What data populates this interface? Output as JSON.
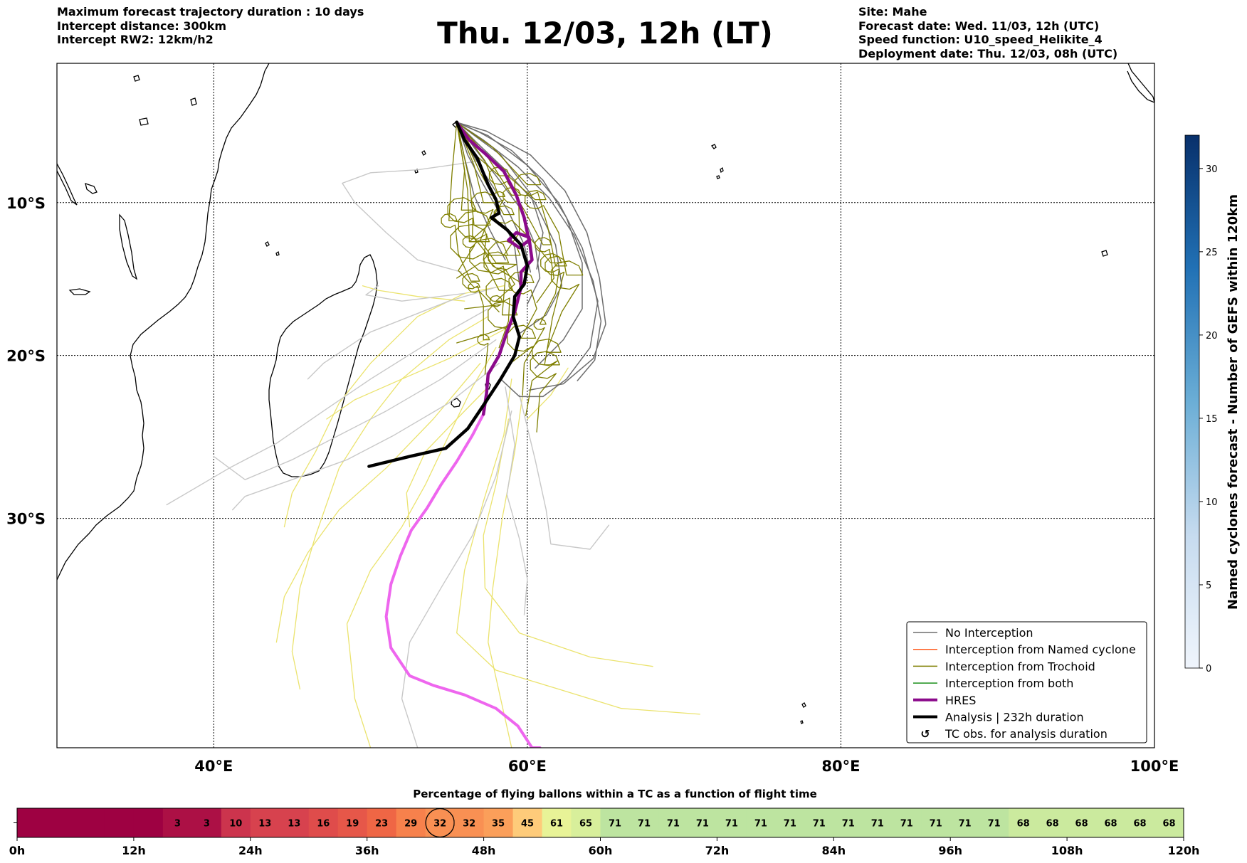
{
  "header": {
    "left_lines": [
      "Maximum forecast trajectory duration : 10 days",
      "Intercept distance: 300km",
      "Intercept RW2: 12km/h2"
    ],
    "title": "Thu. 12/03, 12h (LT)",
    "right_lines": [
      "Site: Mahe",
      "Forecast date: Wed. 11/03, 12h (UTC)",
      "Speed function: U10_speed_Helikite_4",
      "Deployment date: Thu. 12/03, 08h (UTC)"
    ]
  },
  "colors": {
    "no_interception": "#6e6e6e",
    "no_interception_faded": "#c8c8c8",
    "named_cyclone": "#ff5a1e",
    "trochoid": "#7f7f00",
    "trochoid_faded": "#ebe36e",
    "both": "#1a8f1a",
    "hres": "#8b0a8b",
    "hres_faded": "#ee66ee",
    "analysis": "#000000"
  },
  "chart_data": [
    {
      "type": "line",
      "name": "map",
      "x_ticks": [
        40,
        60,
        80,
        100
      ],
      "x_tick_labels": [
        "40°E",
        "60°E",
        "80°E",
        "100°E"
      ],
      "y_ticks": [
        -10,
        -20,
        -30
      ],
      "y_tick_labels": [
        "10°S",
        "20°S",
        "30°S"
      ],
      "xlim": [
        30,
        100
      ],
      "ylim": [
        -42.5,
        -0.6
      ],
      "grid": true,
      "site": {
        "lon": 55.5,
        "lat": -4.6
      },
      "series": [
        {
          "name": "HRES",
          "values": [
            [
              55.5,
              -4.6
            ],
            [
              56.3,
              -5.8
            ],
            [
              57.3,
              -6.7
            ],
            [
              58.5,
              -7.9
            ],
            [
              59.3,
              -9.5
            ],
            [
              59.8,
              -11.0
            ],
            [
              60.1,
              -12.5
            ],
            [
              59.5,
              -13.0
            ],
            [
              58.8,
              -12.5
            ],
            [
              59.3,
              -12.0
            ],
            [
              60.1,
              -12.3
            ],
            [
              60.3,
              -13.8
            ],
            [
              59.6,
              -14.6
            ],
            [
              59.6,
              -15.6
            ],
            [
              59.2,
              -17.2
            ],
            [
              58.7,
              -18.5
            ],
            [
              58.2,
              -20.0
            ],
            [
              57.5,
              -21.2
            ],
            [
              57.4,
              -22.4
            ],
            [
              57.2,
              -23.7
            ],
            [
              56.5,
              -25.0
            ],
            [
              55.5,
              -26.6
            ],
            [
              54.5,
              -28.0
            ],
            [
              53.6,
              -29.4
            ],
            [
              52.6,
              -30.7
            ],
            [
              51.9,
              -32.2
            ],
            [
              51.3,
              -33.8
            ],
            [
              51.0,
              -35.6
            ],
            [
              51.3,
              -37.3
            ],
            [
              52.5,
              -38.8
            ],
            [
              54.0,
              -39.3
            ],
            [
              56.0,
              -39.8
            ],
            [
              58.0,
              -40.5
            ],
            [
              59.4,
              -41.4
            ],
            [
              60.3,
              -42.5
            ],
            [
              60.8,
              -42.5
            ]
          ]
        },
        {
          "name": "Analysis | 232h duration",
          "values": [
            [
              55.5,
              -4.6
            ],
            [
              56.0,
              -5.8
            ],
            [
              56.8,
              -7.0
            ],
            [
              57.5,
              -8.8
            ],
            [
              58.0,
              -9.8
            ],
            [
              58.2,
              -10.7
            ],
            [
              57.7,
              -11.0
            ],
            [
              58.7,
              -11.8
            ],
            [
              59.6,
              -12.8
            ],
            [
              60.0,
              -14.2
            ],
            [
              59.8,
              -15.4
            ],
            [
              59.2,
              -16.2
            ],
            [
              59.1,
              -17.5
            ],
            [
              59.5,
              -18.8
            ],
            [
              59.2,
              -20.0
            ],
            [
              58.3,
              -21.5
            ],
            [
              57.3,
              -23.0
            ],
            [
              56.2,
              -24.6
            ],
            [
              54.8,
              -25.8
            ],
            [
              52.5,
              -26.3
            ],
            [
              49.9,
              -26.9
            ]
          ]
        }
      ]
    },
    {
      "type": "heatmap",
      "name": "colorbar",
      "label": "Named cyclones forecast - Number of GEFS within 120km",
      "ylim": [
        0,
        32
      ],
      "ticks": [
        0,
        5,
        10,
        15,
        20,
        25,
        30
      ]
    },
    {
      "type": "bar",
      "name": "flight-time-strip",
      "title": "Percentage of flying ballons within a TC as a function of flight time",
      "x_ticks": [
        0,
        12,
        24,
        36,
        48,
        60,
        72,
        84,
        96,
        108,
        120
      ],
      "x_tick_labels": [
        "0h",
        "12h",
        "24h",
        "36h",
        "48h",
        "60h",
        "72h",
        "84h",
        "96h",
        "108h",
        "120h"
      ],
      "xlim": [
        0,
        120
      ],
      "bin_hours": 3,
      "values": [
        0,
        0,
        0,
        0,
        0,
        3,
        3,
        10,
        13,
        13,
        16,
        19,
        23,
        29,
        32,
        32,
        35,
        45,
        61,
        65,
        71,
        71,
        71,
        71,
        71,
        71,
        71,
        71,
        71,
        71,
        71,
        71,
        71,
        71,
        68,
        68,
        68,
        68,
        68,
        68
      ],
      "highlight_index": 14
    }
  ],
  "legend": {
    "placement": "lower-right",
    "items": [
      {
        "label": "No Interception",
        "color": "#6e6e6e",
        "kind": "thin"
      },
      {
        "label": "Interception from Named cyclone",
        "color": "#ff5a1e",
        "kind": "thin"
      },
      {
        "label": "Interception from Trochoid",
        "color": "#7f7f00",
        "kind": "thin"
      },
      {
        "label": "Interception from both",
        "color": "#1a8f1a",
        "kind": "thin"
      },
      {
        "label": "HRES",
        "color": "#8b0a8b",
        "kind": "thick"
      },
      {
        "label": "Analysis | 232h duration",
        "color": "#000000",
        "kind": "thick"
      },
      {
        "label": "TC obs. for analysis duration",
        "color": "#000000",
        "kind": "marker",
        "glyph": "↺"
      }
    ]
  }
}
